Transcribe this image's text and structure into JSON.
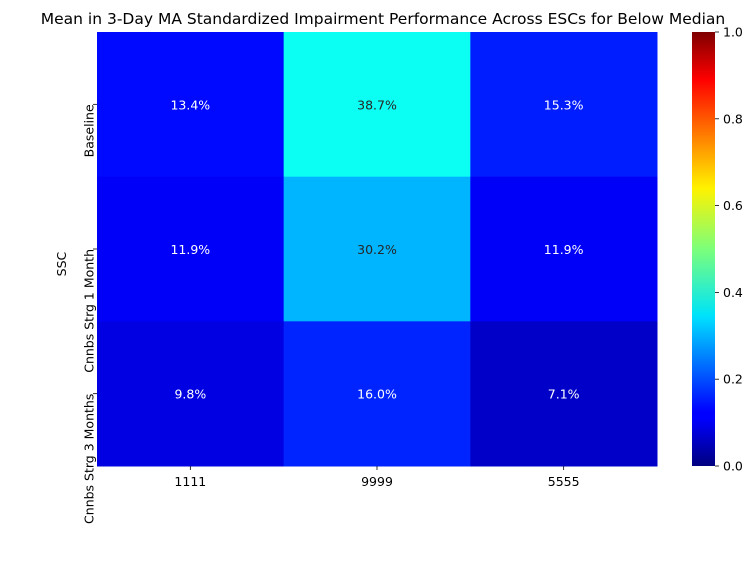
{
  "chart_data": {
    "type": "heatmap",
    "title": "Mean in 3-Day MA Standardized Impairment Performance Across ESCs for Below Median",
    "xlabel": "",
    "ylabel": "SSC",
    "x_categories": [
      "1111",
      "9999",
      "5555"
    ],
    "y_categories": [
      "Baseline",
      "Cnnbs Strg 1 Month",
      "Cnnbs Strg 3 Months"
    ],
    "values": [
      [
        0.134,
        0.387,
        0.153
      ],
      [
        0.119,
        0.302,
        0.119
      ],
      [
        0.098,
        0.16,
        0.071
      ]
    ],
    "cell_labels": [
      [
        "13.4%",
        "38.7%",
        "15.3%"
      ],
      [
        "11.9%",
        "30.2%",
        "11.9%"
      ],
      [
        "9.8%",
        "16.0%",
        "7.1%"
      ]
    ],
    "colormap": "jet",
    "vmin": 0,
    "vmax": 1,
    "colorbar_ticks": [
      "0.0",
      "0.2",
      "0.4",
      "0.6",
      "0.8",
      "1.0"
    ],
    "colorbar_tick_values": [
      0,
      0.2,
      0.4,
      0.6,
      0.8,
      1.0
    ]
  }
}
